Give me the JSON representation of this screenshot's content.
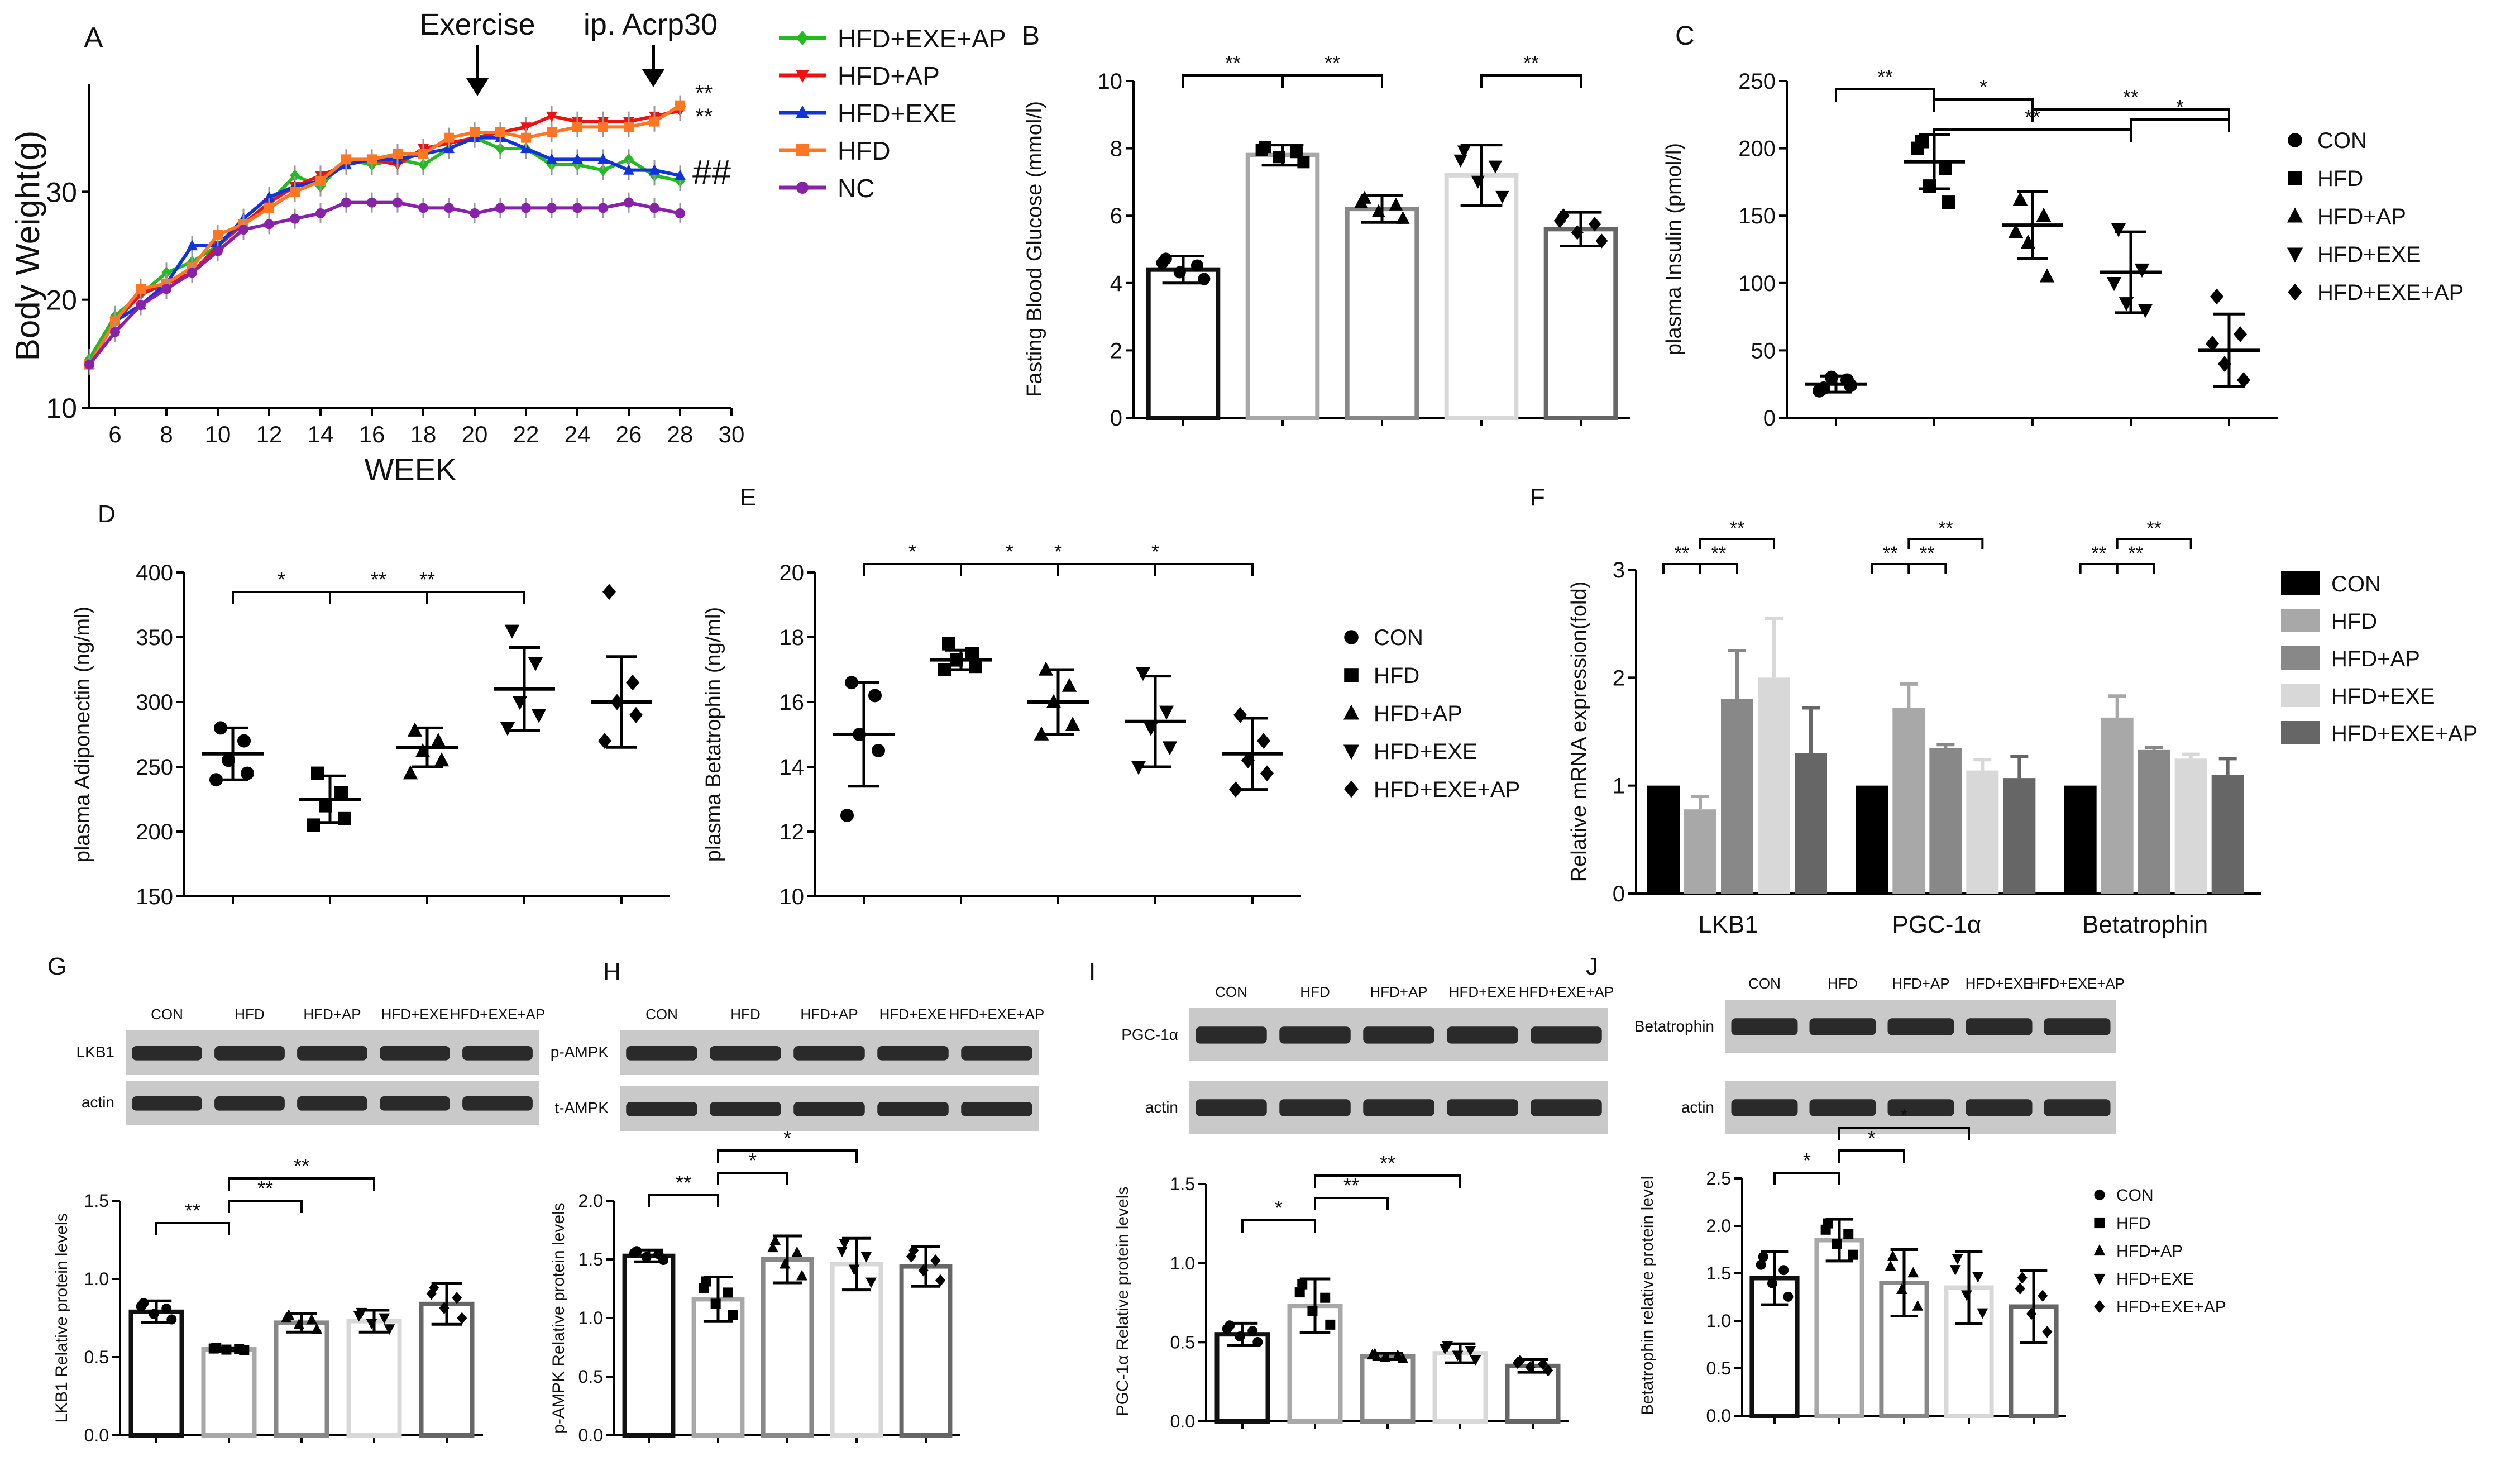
{
  "colors": {
    "HFD+EXE+AP": "#22bb22",
    "HFD+AP": "#ee1111",
    "HFD+EXE": "#1133dd",
    "HFD": "#ff7722",
    "NC": "#8822aa",
    "CON": "#000000",
    "bar_CON": "#111111",
    "bar_HFD": "#a8a8a8",
    "bar_HFD+AP": "#888888",
    "bar_HFD+EXE": "#d8d8d8",
    "bar_HFD+EXE+AP": "#666666"
  },
  "chart_data": [
    {
      "panel": "A",
      "type": "line",
      "xlabel": "WEEK",
      "ylabel": "Body Weight(g)",
      "xlim": [
        5,
        30
      ],
      "ylim": [
        10,
        40
      ],
      "xticks": [
        "6",
        "8",
        "10",
        "12",
        "14",
        "16",
        "18",
        "20",
        "22",
        "24",
        "26",
        "28",
        "30"
      ],
      "yticks": [
        "10",
        "20",
        "30"
      ],
      "x": [
        5,
        6,
        7,
        8,
        9,
        10,
        11,
        12,
        13,
        14,
        15,
        16,
        17,
        18,
        19,
        20,
        21,
        22,
        23,
        24,
        25,
        26,
        27,
        28
      ],
      "series": [
        {
          "name": "HFD+EXE+AP",
          "values": [
            14.5,
            18.5,
            20.5,
            22.5,
            23.5,
            25,
            27,
            29,
            31.5,
            30.5,
            33,
            32.5,
            33,
            32.5,
            34,
            35,
            34,
            34,
            32.5,
            32.5,
            32,
            33,
            31.5,
            31
          ]
        },
        {
          "name": "HFD+AP",
          "values": [
            14,
            18,
            20.5,
            21.5,
            22.5,
            25,
            27,
            29,
            30.5,
            31.5,
            32.5,
            33,
            32.5,
            34,
            34.5,
            35,
            35.5,
            36,
            37,
            36.5,
            36.5,
            36.5,
            37,
            37.5
          ]
        },
        {
          "name": "HFD+EXE",
          "values": [
            14,
            18,
            19.5,
            21.5,
            25,
            25,
            27.5,
            29.5,
            30.5,
            31,
            32.5,
            33,
            33,
            33.5,
            34,
            35,
            35,
            34,
            33,
            33,
            33,
            32,
            32,
            31.5
          ]
        },
        {
          "name": "HFD",
          "values": [
            14,
            18,
            21,
            21.5,
            23,
            26,
            27,
            28.5,
            30,
            31,
            33,
            33,
            33.5,
            33.5,
            35,
            35.5,
            35.5,
            35,
            35.5,
            36,
            36,
            36,
            36.5,
            38
          ]
        },
        {
          "name": "NC",
          "values": [
            14,
            17,
            19.5,
            21,
            22.5,
            24.5,
            26.5,
            27,
            27.5,
            28,
            29,
            29,
            29,
            28.5,
            28.5,
            28,
            28.5,
            28.5,
            28.5,
            28.5,
            28.5,
            29,
            28.5,
            28
          ]
        }
      ],
      "annotations": {
        "exercise": "Exercise",
        "acrp": "ip. Acrp30",
        "sig1": "**",
        "sig2": "**",
        "sig3": "##"
      }
    },
    {
      "panel": "B",
      "type": "bar",
      "ylabel": "Fasting Blood Glucose (mmol/l)",
      "ylim": [
        0,
        10
      ],
      "yticks": [
        "0",
        "2",
        "4",
        "6",
        "8",
        "10"
      ],
      "categories": [
        "CON",
        "HFD",
        "HFD+AP",
        "HFD+EXE",
        "HFD+EXE+AP"
      ],
      "values": [
        4.4,
        7.8,
        6.2,
        7.2,
        5.6
      ],
      "errors": [
        0.4,
        0.3,
        0.4,
        0.9,
        0.5
      ],
      "brackets": [
        [
          "0",
          "1",
          "**"
        ],
        [
          "1",
          "2",
          "**"
        ],
        [
          "3",
          "4",
          "**"
        ]
      ]
    },
    {
      "panel": "C",
      "type": "scatter",
      "ylabel": "plasma Insulin (pmol/l)",
      "ylim": [
        0,
        250
      ],
      "yticks": [
        "0",
        "50",
        "100",
        "150",
        "200",
        "250"
      ],
      "categories": [
        "CON",
        "HFD",
        "HFD+AP",
        "HFD+EXE",
        "HFD+EXE+AP"
      ],
      "means": [
        25,
        190,
        143,
        108,
        50
      ],
      "errors": [
        6,
        20,
        25,
        30,
        27
      ],
      "points": [
        [
          22,
          28,
          30,
          24,
          20
        ],
        [
          205,
          185,
          172,
          160,
          200
        ],
        [
          162,
          150,
          130,
          105,
          138
        ],
        [
          140,
          110,
          85,
          80,
          100
        ],
        [
          90,
          62,
          40,
          28,
          55
        ]
      ],
      "legend": [
        "CON",
        "HFD",
        "HFD+AP",
        "HFD+EXE",
        "HFD+EXE+AP"
      ],
      "brackets": [
        [
          "0",
          "1",
          "**"
        ],
        [
          "1",
          "2",
          "*"
        ],
        [
          "2",
          "4",
          "**"
        ],
        [
          "3",
          "4",
          "*"
        ],
        [
          "1",
          "3",
          "**"
        ]
      ]
    },
    {
      "panel": "D",
      "type": "scatter",
      "ylabel": "plasma Adiponectin (ng/ml)",
      "ylim": [
        150,
        400
      ],
      "yticks": [
        "150",
        "200",
        "250",
        "300",
        "350",
        "400"
      ],
      "categories": [
        "CON",
        "HFD",
        "HFD+AP",
        "HFD+EXE",
        "HFD+EXE+AP"
      ],
      "means": [
        260,
        225,
        265,
        310,
        300
      ],
      "errors": [
        20,
        18,
        15,
        32,
        35
      ],
      "points": [
        [
          280,
          270,
          255,
          245,
          240
        ],
        [
          245,
          230,
          220,
          210,
          205
        ],
        [
          278,
          270,
          262,
          255,
          245
        ],
        [
          355,
          330,
          300,
          290,
          280
        ],
        [
          385,
          315,
          300,
          290,
          270
        ]
      ],
      "brackets": [
        [
          "0",
          "1",
          "*"
        ],
        [
          "1",
          "2",
          "**"
        ],
        [
          "1",
          "3",
          "**"
        ]
      ]
    },
    {
      "panel": "E",
      "type": "scatter",
      "ylabel": "plasma Betatrophin (ng/ml)",
      "ylim": [
        10,
        20
      ],
      "yticks": [
        "10",
        "12",
        "14",
        "16",
        "18",
        "20"
      ],
      "categories": [
        "CON",
        "HFD",
        "HFD+AP",
        "HFD+EXE",
        "HFD+EXE+AP"
      ],
      "means": [
        15,
        17.3,
        16,
        15.4,
        14.4
      ],
      "errors": [
        1.6,
        0.3,
        1.0,
        1.4,
        1.1
      ],
      "points": [
        [
          16.6,
          16.2,
          15.0,
          14.5,
          12.5
        ],
        [
          17.8,
          17.5,
          17.3,
          17.1,
          17.0
        ],
        [
          17.0,
          16.5,
          16.0,
          15.3,
          15.0
        ],
        [
          16.9,
          15.7,
          15.2,
          14.6,
          14.0
        ],
        [
          15.6,
          14.8,
          14.2,
          13.8,
          13.3
        ]
      ],
      "legend": [
        "CON",
        "HFD",
        "HFD+AP",
        "HFD+EXE",
        "HFD+EXE+AP"
      ],
      "brackets": [
        [
          "0",
          "1",
          "*"
        ],
        [
          "1",
          "2",
          "*"
        ],
        [
          "2",
          "4",
          "*"
        ],
        [
          "1",
          "3",
          "*"
        ]
      ]
    },
    {
      "panel": "F",
      "type": "bar",
      "ylabel": "Relative mRNA expression(fold)",
      "ylim": [
        0,
        3
      ],
      "yticks": [
        "0",
        "1",
        "2",
        "3"
      ],
      "categories": [
        "LKB1",
        "PGC-1α",
        "Betatrophin"
      ],
      "series": [
        {
          "name": "CON",
          "values": [
            1,
            1,
            1
          ],
          "errors": [
            0,
            0,
            0
          ]
        },
        {
          "name": "HFD",
          "values": [
            0.78,
            1.72,
            1.63
          ],
          "errors": [
            0.12,
            0.22,
            0.2
          ]
        },
        {
          "name": "HFD+AP",
          "values": [
            1.8,
            1.35,
            1.33
          ],
          "errors": [
            0.45,
            0.03,
            0.02
          ]
        },
        {
          "name": "HFD+EXE",
          "values": [
            2.0,
            1.14,
            1.25
          ],
          "errors": [
            0.55,
            0.1,
            0.04
          ]
        },
        {
          "name": "HFD+EXE+AP",
          "values": [
            1.3,
            1.07,
            1.1
          ],
          "errors": [
            0.42,
            0.2,
            0.15
          ]
        }
      ],
      "legend": [
        "CON",
        "HFD",
        "HFD+AP",
        "HFD+EXE",
        "HFD+EXE+AP"
      ],
      "brackets": [
        [
          "0",
          "1",
          "**"
        ],
        [
          "1",
          "2",
          "**"
        ],
        [
          "1",
          "3",
          "**"
        ]
      ]
    },
    {
      "panel": "G",
      "type": "bar",
      "ylabel": "LKB1 Relative protein levels",
      "ylim": [
        0,
        1.5
      ],
      "yticks": [
        "0.0",
        "0.5",
        "1.0",
        "1.5"
      ],
      "categories": [
        "CON",
        "HFD",
        "HFD+AP",
        "HFD+EXE",
        "HFD+EXE+AP"
      ],
      "values": [
        0.79,
        0.55,
        0.72,
        0.73,
        0.84
      ],
      "errors": [
        0.07,
        0.01,
        0.06,
        0.07,
        0.13
      ],
      "brackets": [
        [
          "0",
          "1",
          "**"
        ],
        [
          "1",
          "2",
          "**"
        ],
        [
          "1",
          "3",
          "**"
        ]
      ]
    },
    {
      "panel": "H",
      "type": "bar",
      "ylabel": "p-AMPK Relative protein levels",
      "ylim": [
        0,
        2.0
      ],
      "yticks": [
        "0.0",
        "0.5",
        "1.0",
        "1.5",
        "2.0"
      ],
      "categories": [
        "CON",
        "HFD",
        "HFD+AP",
        "HFD+EXE",
        "HFD+EXE+AP"
      ],
      "values": [
        1.53,
        1.16,
        1.5,
        1.46,
        1.44
      ],
      "errors": [
        0.05,
        0.19,
        0.2,
        0.22,
        0.17
      ],
      "brackets": [
        [
          "0",
          "1",
          "**"
        ],
        [
          "1",
          "2",
          "*"
        ],
        [
          "1",
          "3",
          "*"
        ]
      ]
    },
    {
      "panel": "I",
      "type": "bar",
      "ylabel": "PGC-1α Relative protein levels",
      "ylim": [
        0,
        1.5
      ],
      "yticks": [
        "0.0",
        "0.5",
        "1.0",
        "1.5"
      ],
      "categories": [
        "CON",
        "HFD",
        "HFD+AP",
        "HFD+EXE",
        "HFD+EXE+AP"
      ],
      "values": [
        0.55,
        0.73,
        0.41,
        0.43,
        0.35
      ],
      "errors": [
        0.07,
        0.17,
        0.02,
        0.06,
        0.04
      ],
      "brackets": [
        [
          "0",
          "1",
          "*"
        ],
        [
          "1",
          "2",
          "**"
        ],
        [
          "1",
          "3",
          "**"
        ]
      ]
    },
    {
      "panel": "J",
      "type": "bar",
      "ylabel": "Betatrophin relative protein level",
      "ylim": [
        0,
        2.5
      ],
      "yticks": [
        "0.0",
        "0.5",
        "1.0",
        "1.5",
        "2.0",
        "2.5"
      ],
      "categories": [
        "CON",
        "HFD",
        "HFD+AP",
        "HFD+EXE",
        "HFD+EXE+AP"
      ],
      "values": [
        1.45,
        1.85,
        1.4,
        1.35,
        1.15
      ],
      "errors": [
        0.28,
        0.22,
        0.35,
        0.38,
        0.38
      ],
      "legend": [
        "CON",
        "HFD",
        "HFD+AP",
        "HFD+EXE",
        "HFD+EXE+AP"
      ],
      "brackets": [
        [
          "0",
          "1",
          "*"
        ],
        [
          "1",
          "2",
          "*"
        ],
        [
          "1",
          "3",
          "*"
        ]
      ]
    }
  ],
  "blots": {
    "G": {
      "lanes": [
        "CON",
        "HFD",
        "HFD+AP",
        "HFD+EXE",
        "HFD+EXE+AP"
      ],
      "rows": [
        "LKB1",
        "actin"
      ]
    },
    "H": {
      "lanes": [
        "CON",
        "HFD",
        "HFD+AP",
        "HFD+EXE",
        "HFD+EXE+AP"
      ],
      "rows": [
        "p-AMPK",
        "t-AMPK"
      ]
    },
    "I": {
      "lanes": [
        "CON",
        "HFD",
        "HFD+AP",
        "HFD+EXE",
        "HFD+EXE+AP"
      ],
      "rows": [
        "PGC-1α",
        "actin"
      ]
    },
    "J": {
      "lanes": [
        "CON",
        "HFD",
        "HFD+AP",
        "HFD+EXE",
        "HFD+EXE+AP"
      ],
      "rows": [
        "Betatrophin",
        "actin"
      ]
    }
  }
}
